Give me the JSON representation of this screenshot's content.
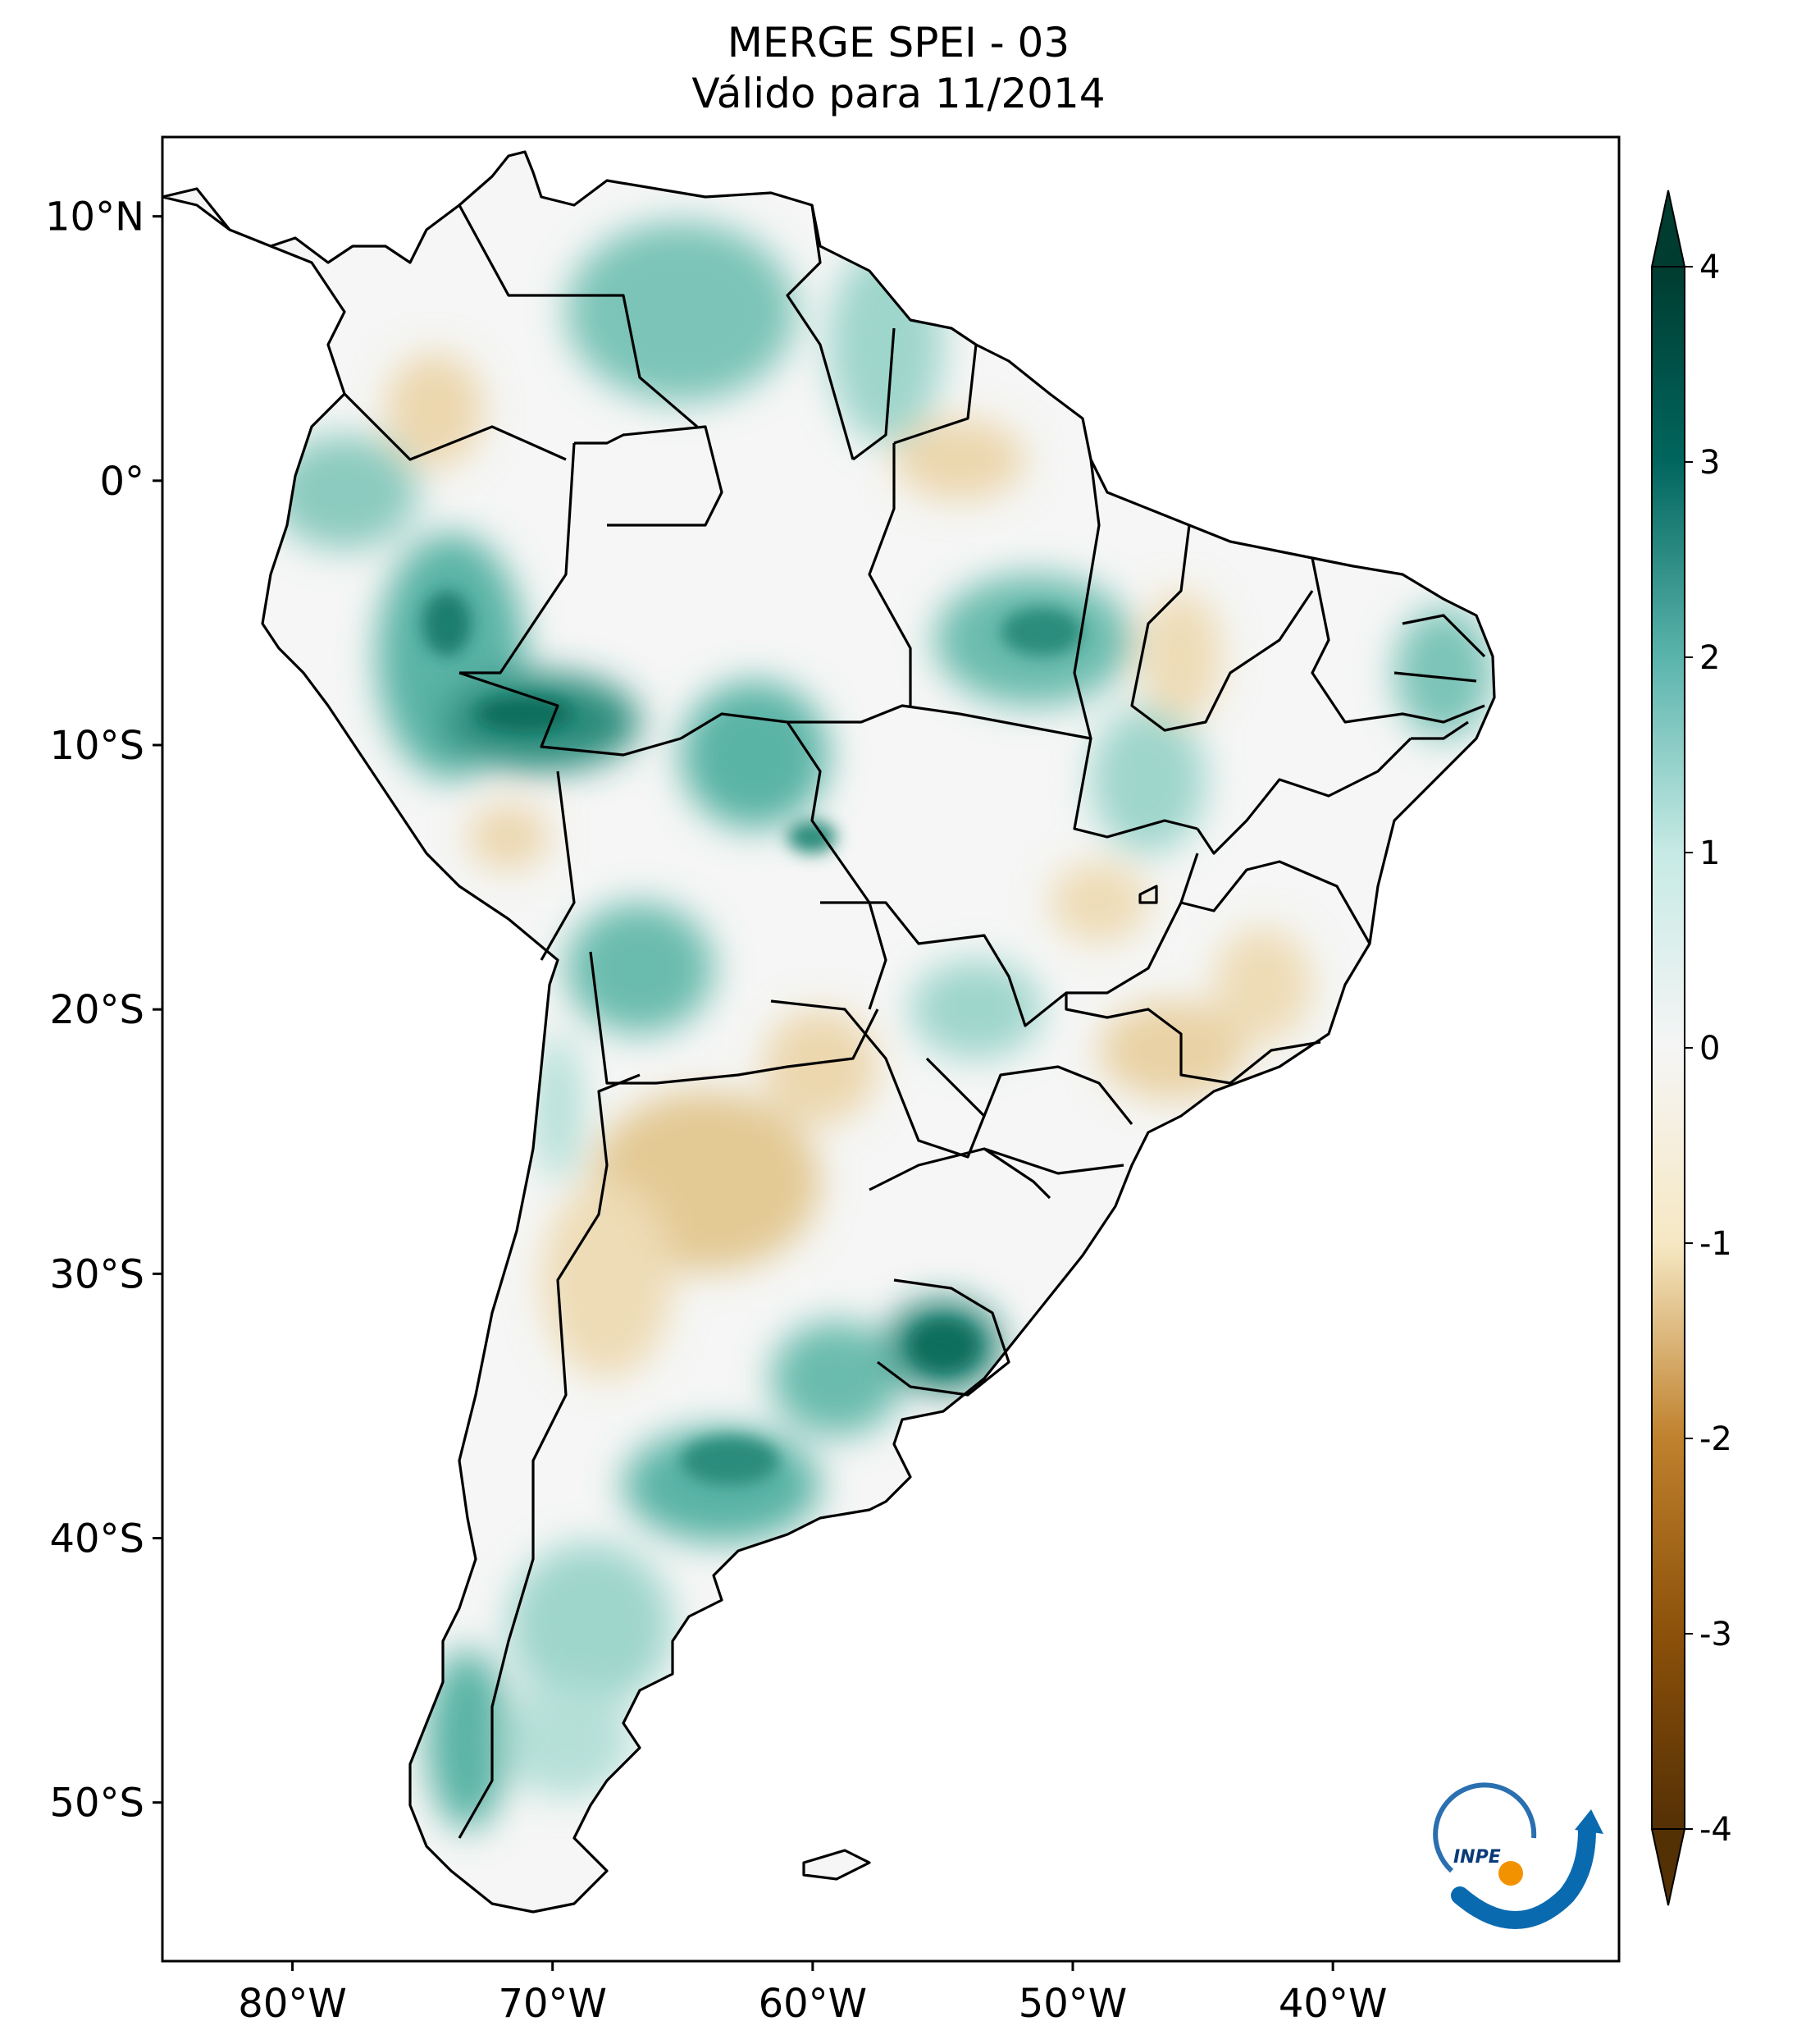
{
  "title": {
    "line1": "MERGE   SPEI - 03",
    "line2": "Válido para 11/2014"
  },
  "map": {
    "region": "South America",
    "lon_range": [
      -85,
      -29
    ],
    "lat_range": [
      -56,
      13
    ],
    "lat_ticks": [
      {
        "value": 10,
        "label": "10°N"
      },
      {
        "value": 0,
        "label": "0°"
      },
      {
        "value": -10,
        "label": "10°S"
      },
      {
        "value": -20,
        "label": "20°S"
      },
      {
        "value": -30,
        "label": "30°S"
      },
      {
        "value": -40,
        "label": "40°S"
      },
      {
        "value": -50,
        "label": "50°S"
      }
    ],
    "lon_ticks": [
      {
        "value": -80,
        "label": "80°W"
      },
      {
        "value": -70,
        "label": "70°W"
      },
      {
        "value": -60,
        "label": "60°W"
      },
      {
        "value": -50,
        "label": "50°W"
      },
      {
        "value": -40,
        "label": "40°W"
      }
    ],
    "colors": {
      "ocean": "#ffffff",
      "neutral": "#f6f7f6",
      "wet": "#5ab4a6",
      "wet_strong": "#0e6e5d",
      "dry": "#e8d1a5",
      "dry_strong": "#c9a463"
    }
  },
  "colorbar": {
    "min": -4,
    "max": 4,
    "ticks": [
      {
        "value": 4,
        "label": "4"
      },
      {
        "value": 3,
        "label": "3"
      },
      {
        "value": 2,
        "label": "2"
      },
      {
        "value": 1,
        "label": "1"
      },
      {
        "value": 0,
        "label": "0"
      },
      {
        "value": -1,
        "label": "-1"
      },
      {
        "value": -2,
        "label": "-2"
      },
      {
        "value": -3,
        "label": "-3"
      },
      {
        "value": -4,
        "label": "-4"
      }
    ],
    "stops": [
      {
        "value": -4,
        "color": "#543005"
      },
      {
        "value": -3,
        "color": "#8c510a"
      },
      {
        "value": -2,
        "color": "#bf812d"
      },
      {
        "value": -1,
        "color": "#f6e8c3"
      },
      {
        "value": 0,
        "color": "#f5f5f5"
      },
      {
        "value": 1,
        "color": "#c7eae5"
      },
      {
        "value": 2,
        "color": "#5ab4ac"
      },
      {
        "value": 3,
        "color": "#01665e"
      },
      {
        "value": 4,
        "color": "#003c30"
      }
    ]
  },
  "logo": {
    "text": "INPE"
  }
}
